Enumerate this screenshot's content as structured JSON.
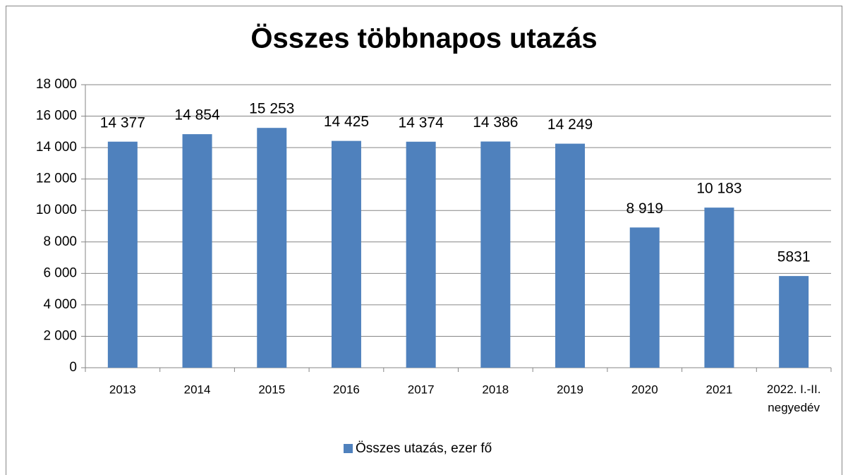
{
  "chart_data": {
    "type": "bar",
    "title": "Összes többnapos utazás",
    "categories": [
      "2013",
      "2014",
      "2015",
      "2016",
      "2017",
      "2018",
      "2019",
      "2020",
      "2021",
      "2022. I.-II. negyedév"
    ],
    "series": [
      {
        "name": "Összes utazás, ezer fő",
        "color": "#4f81bd",
        "values": [
          14377,
          14854,
          15253,
          14425,
          14374,
          14386,
          14249,
          8919,
          10183,
          5831
        ],
        "value_labels": [
          "14 377",
          "14 854",
          "15 253",
          "14 425",
          "14 374",
          "14 386",
          "14 249",
          "8 919",
          "10 183",
          "5831"
        ]
      }
    ],
    "ylim": [
      0,
      18000
    ],
    "yticks": [
      0,
      {
        "value": 2000,
        "label": "2 000"
      },
      {
        "value": 4000,
        "label": "4 000"
      },
      {
        "value": 6000,
        "label": "6 000"
      },
      {
        "value": 8000,
        "label": "8 000"
      },
      {
        "value": 10000,
        "label": "10 000"
      },
      {
        "value": 12000,
        "label": "12 000"
      },
      {
        "value": 14000,
        "label": "14 000"
      },
      {
        "value": 16000,
        "label": "16 000"
      },
      {
        "value": 18000,
        "label": "18 000"
      }
    ],
    "grid": true,
    "legend": "bottom"
  }
}
